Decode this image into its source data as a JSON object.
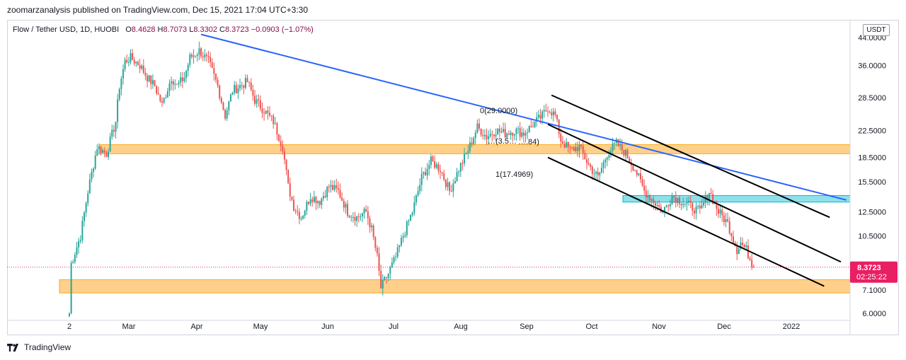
{
  "publisher_line": "zoomarzanalysis published on TradingView.com, Dec 15, 2021 17:04 UTC+3:30",
  "legend": {
    "symbol": "Flow / Tether USD, 1D, HUOBI",
    "open_label": "O",
    "open": "8.4628",
    "high_label": "H",
    "high": "8.7073",
    "low_label": "L",
    "low": "8.3302",
    "close_label": "C",
    "close": "8.3723",
    "change": "−0.0903 (−1.07%)"
  },
  "unit": "USDT",
  "price_tag": {
    "price": "8.3723",
    "countdown": "02:25:22"
  },
  "brand": "TradingView",
  "colors": {
    "up": "#26a69a",
    "down": "#ef5350",
    "zone": "#ffcc80",
    "zone_border": "#f7a600",
    "blue_zone": "#80deea",
    "trendline": "#2962ff",
    "channel": "#000000",
    "tag": "#e91e63"
  },
  "chart_data": {
    "type": "candlestick",
    "scale": "log",
    "ylim": [
      5.7,
      50
    ],
    "y_ticks": [
      "44.0000",
      "36.0000",
      "28.5000",
      "22.5000",
      "18.5000",
      "15.5000",
      "12.5000",
      "10.5000",
      "7.1000",
      "6.0000"
    ],
    "x_ticks": [
      "2",
      "Mar",
      "Apr",
      "May",
      "Jun",
      "Jul",
      "Aug",
      "Sep",
      "Oct",
      "Nov",
      "Dec",
      "2022"
    ],
    "anchors": [
      [
        0,
        6.0
      ],
      [
        1,
        8.6
      ],
      [
        6,
        10.5
      ],
      [
        10,
        14.5
      ],
      [
        15,
        20.0
      ],
      [
        20,
        19.0
      ],
      [
        25,
        24.0
      ],
      [
        27,
        31.0
      ],
      [
        30,
        37.0
      ],
      [
        33,
        38.0
      ],
      [
        38,
        36.0
      ],
      [
        42,
        33.0
      ],
      [
        46,
        31.0
      ],
      [
        50,
        27.0
      ],
      [
        55,
        33.0
      ],
      [
        58,
        31.0
      ],
      [
        62,
        33.0
      ],
      [
        65,
        38.0
      ],
      [
        70,
        40.0
      ],
      [
        75,
        37.0
      ],
      [
        80,
        31.0
      ],
      [
        84,
        25.0
      ],
      [
        88,
        30.0
      ],
      [
        92,
        31.0
      ],
      [
        96,
        32.0
      ],
      [
        100,
        28.0
      ],
      [
        105,
        26.0
      ],
      [
        110,
        24.0
      ],
      [
        115,
        20.0
      ],
      [
        118,
        15.0
      ],
      [
        121,
        13.0
      ],
      [
        125,
        12.0
      ],
      [
        130,
        14.0
      ],
      [
        135,
        13.5
      ],
      [
        140,
        15.0
      ],
      [
        145,
        14.5
      ],
      [
        150,
        12.5
      ],
      [
        155,
        12.0
      ],
      [
        160,
        12.5
      ],
      [
        163,
        11.0
      ],
      [
        166,
        9.0
      ],
      [
        168,
        7.2
      ],
      [
        172,
        8.0
      ],
      [
        176,
        9.0
      ],
      [
        180,
        10.5
      ],
      [
        185,
        12.5
      ],
      [
        190,
        16.0
      ],
      [
        195,
        18.0
      ],
      [
        200,
        17.0
      ],
      [
        205,
        14.5
      ],
      [
        210,
        17.0
      ],
      [
        215,
        19.5
      ],
      [
        220,
        23.0
      ],
      [
        225,
        21.5
      ],
      [
        230,
        22.5
      ],
      [
        235,
        22.0
      ],
      [
        240,
        22.5
      ],
      [
        245,
        22.0
      ],
      [
        250,
        23.5
      ],
      [
        255,
        25.0
      ],
      [
        258,
        26.5
      ],
      [
        262,
        25.0
      ],
      [
        265,
        21.0
      ],
      [
        270,
        19.5
      ],
      [
        275,
        20.0
      ],
      [
        280,
        17.5
      ],
      [
        285,
        16.0
      ],
      [
        290,
        19.0
      ],
      [
        295,
        20.5
      ],
      [
        300,
        19.0
      ],
      [
        305,
        17.0
      ],
      [
        310,
        14.5
      ],
      [
        315,
        13.5
      ],
      [
        320,
        12.5
      ],
      [
        325,
        14.0
      ],
      [
        330,
        13.5
      ],
      [
        335,
        13.0
      ],
      [
        340,
        12.5
      ],
      [
        345,
        14.5
      ],
      [
        350,
        12.5
      ],
      [
        355,
        11.5
      ],
      [
        360,
        9.5
      ],
      [
        362,
        10.0
      ],
      [
        365,
        9.5
      ],
      [
        369,
        8.37
      ]
    ],
    "zones": [
      {
        "name": "upper-zone",
        "top": 20.3,
        "bottom": 19.0
      },
      {
        "name": "lower-zone",
        "top": 7.65,
        "bottom": 6.95
      },
      {
        "name": "blue-zone",
        "top": 14.05,
        "bottom": 13.4
      }
    ],
    "trendline": [
      [
        71,
        45.0
      ],
      [
        419,
        13.6
      ]
    ],
    "channel_lines": [
      [
        [
          260,
          29.0
        ],
        [
          410,
          12.0
        ]
      ],
      [
        [
          258,
          23.5
        ],
        [
          416,
          8.7
        ]
      ],
      [
        [
          258,
          18.5
        ],
        [
          407,
          7.3
        ]
      ]
    ],
    "annotations": [
      "0(29.0000)",
      "…(3.5…",
      "….84)",
      "1(17.4969)"
    ],
    "last_price": 8.3723
  }
}
